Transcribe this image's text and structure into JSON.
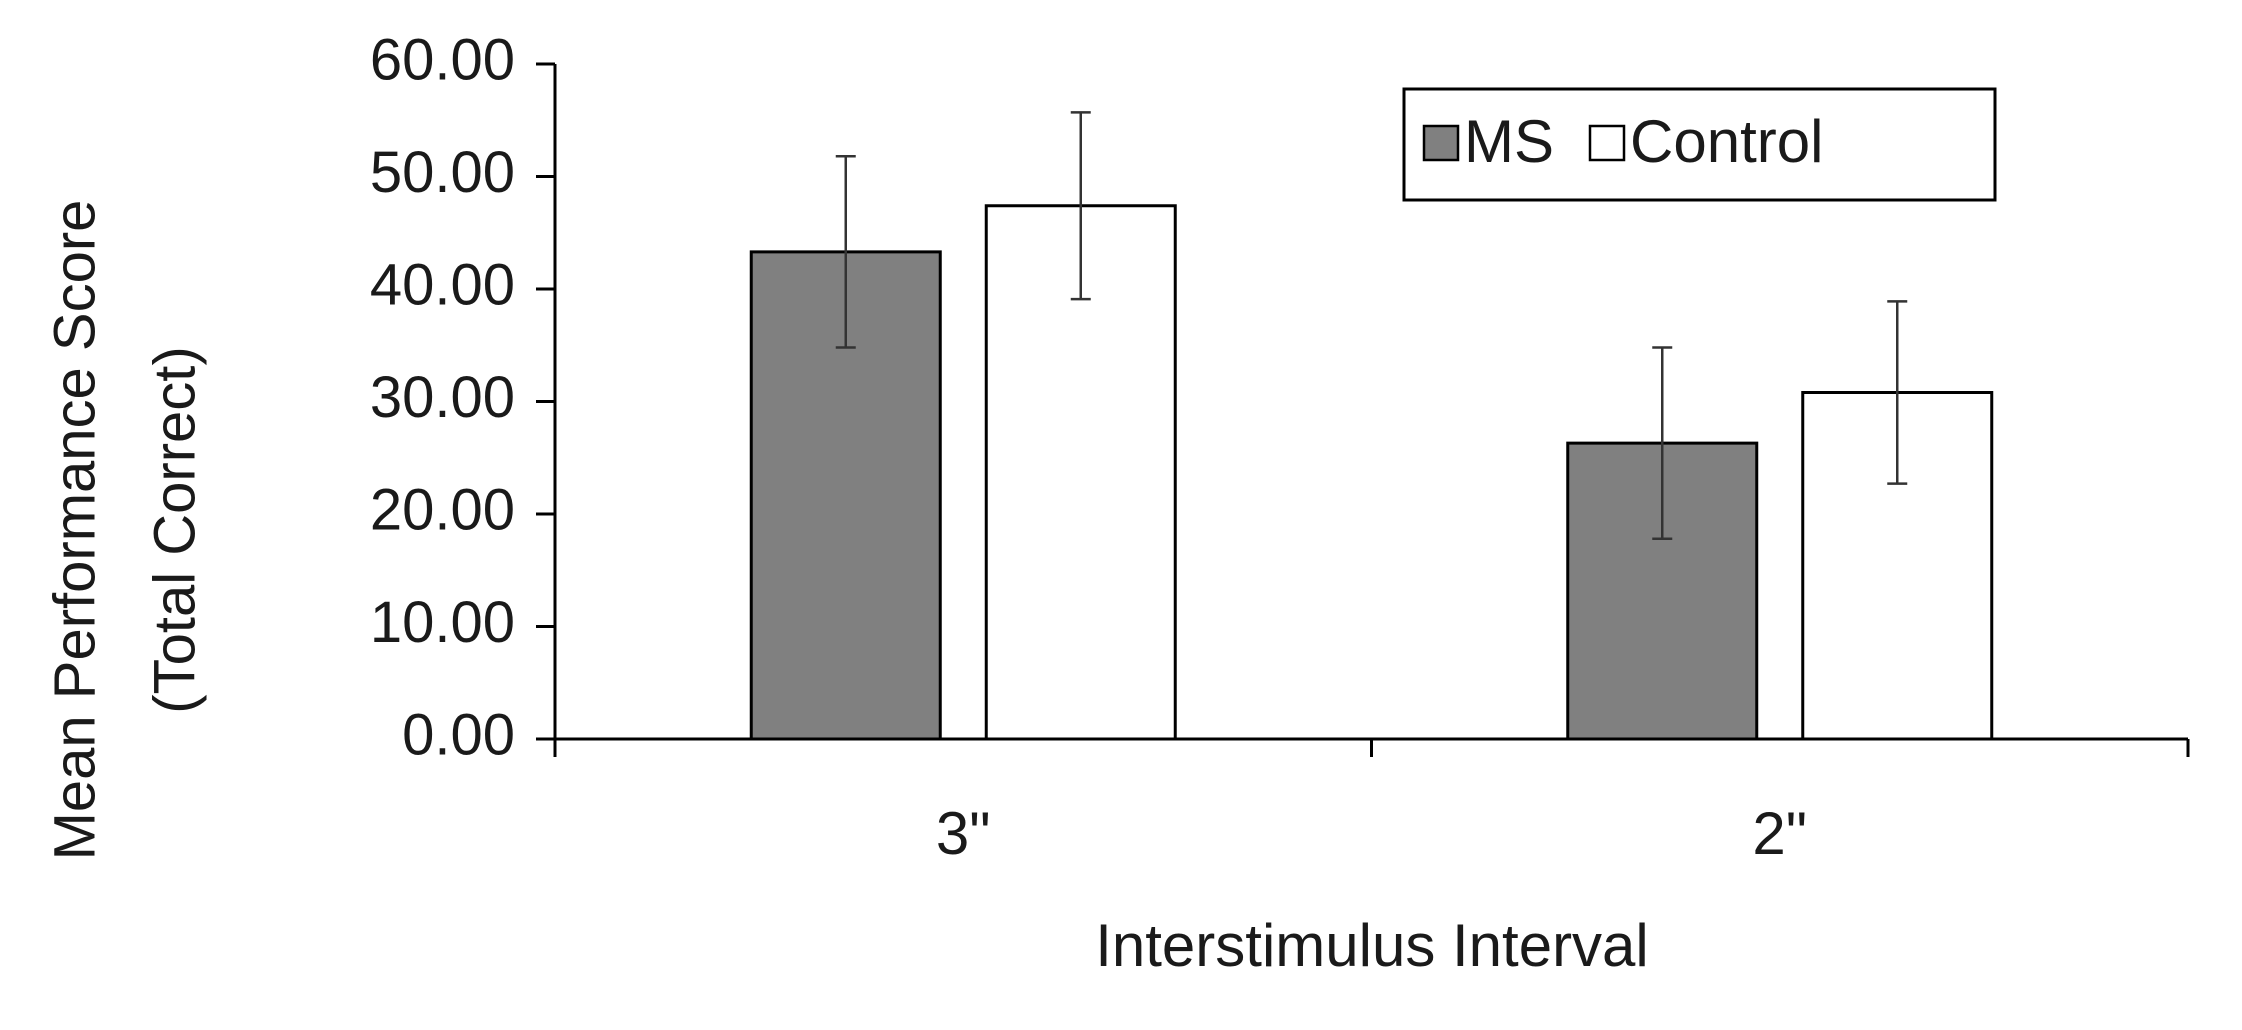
{
  "chart_data": {
    "type": "bar",
    "x_label": "Interstimulus Interval",
    "y_label": [
      "Mean Performance Score",
      "(Total Correct)"
    ],
    "categories": [
      "3\"",
      "2\""
    ],
    "series": [
      {
        "name": "MS",
        "color": "#808080",
        "values": [
          43.3,
          26.3
        ],
        "errors": [
          8.5,
          8.5
        ]
      },
      {
        "name": "Control",
        "color": "#ffffff",
        "values": [
          47.4,
          30.8
        ],
        "errors": [
          8.3,
          8.1
        ]
      }
    ],
    "ylim": [
      0,
      60
    ],
    "yticks": [
      {
        "value": 0,
        "label": "0.00"
      },
      {
        "value": 10,
        "label": "10.00"
      },
      {
        "value": 20,
        "label": "20.00"
      },
      {
        "value": 30,
        "label": "30.00"
      },
      {
        "value": 40,
        "label": "40.00"
      },
      {
        "value": 50,
        "label": "50.00"
      },
      {
        "value": 60,
        "label": "60.00"
      }
    ],
    "legend": "top-right",
    "grid": false
  }
}
